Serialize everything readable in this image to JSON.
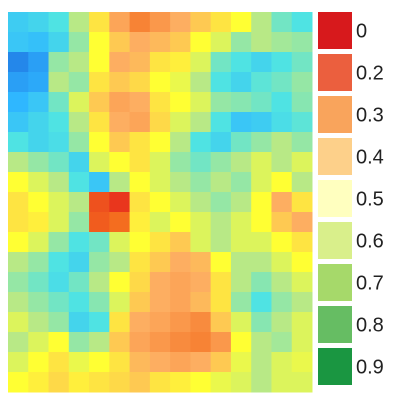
{
  "chart_data": {
    "type": "heatmap",
    "title": "",
    "xlabel": "",
    "ylabel": "",
    "rows": 19,
    "cols": 15,
    "grid": false,
    "colorbar": {
      "placement": "right",
      "scale_note": "",
      "labels": [
        "0",
        "0.2",
        "0.3",
        "0.4",
        "0.5",
        "0.6",
        "0.7",
        "0.8",
        "0.9"
      ],
      "colors": [
        "#d7191c",
        "#eb5f3e",
        "#f9a45c",
        "#fdd08a",
        "#ffffbf",
        "#d9ef8b",
        "#a6d96a",
        "#66bd63",
        "#1a9641"
      ]
    },
    "colormap": [
      {
        "v": 0.0,
        "color": "#e31a1c"
      },
      {
        "v": 0.15,
        "color": "#f46d1f"
      },
      {
        "v": 0.3,
        "color": "#fdae61"
      },
      {
        "v": 0.45,
        "color": "#ffff33"
      },
      {
        "v": 0.55,
        "color": "#b8e986"
      },
      {
        "v": 0.7,
        "color": "#4fe3e3"
      },
      {
        "v": 0.85,
        "color": "#2fb7ff"
      },
      {
        "v": 1.0,
        "color": "#1f6fe0"
      }
    ],
    "values": [
      [
        0.78,
        0.75,
        0.7,
        0.55,
        0.4,
        0.28,
        0.2,
        0.25,
        0.3,
        0.35,
        0.4,
        0.45,
        0.55,
        0.65,
        0.7
      ],
      [
        0.8,
        0.82,
        0.75,
        0.6,
        0.45,
        0.35,
        0.3,
        0.32,
        0.35,
        0.45,
        0.5,
        0.6,
        0.55,
        0.58,
        0.6
      ],
      [
        0.95,
        0.9,
        0.6,
        0.55,
        0.45,
        0.3,
        0.32,
        0.4,
        0.42,
        0.5,
        0.65,
        0.7,
        0.75,
        0.7,
        0.65
      ],
      [
        0.9,
        0.88,
        0.55,
        0.6,
        0.4,
        0.35,
        0.38,
        0.45,
        0.48,
        0.55,
        0.7,
        0.75,
        0.68,
        0.65,
        0.6
      ],
      [
        0.85,
        0.8,
        0.65,
        0.5,
        0.35,
        0.28,
        0.3,
        0.4,
        0.45,
        0.5,
        0.6,
        0.62,
        0.65,
        0.7,
        0.62
      ],
      [
        0.8,
        0.75,
        0.7,
        0.55,
        0.4,
        0.3,
        0.28,
        0.38,
        0.5,
        0.55,
        0.7,
        0.8,
        0.78,
        0.72,
        0.68
      ],
      [
        0.7,
        0.75,
        0.72,
        0.6,
        0.45,
        0.35,
        0.4,
        0.45,
        0.55,
        0.7,
        0.75,
        0.65,
        0.6,
        0.55,
        0.6
      ],
      [
        0.55,
        0.6,
        0.65,
        0.75,
        0.5,
        0.45,
        0.4,
        0.5,
        0.6,
        0.65,
        0.6,
        0.55,
        0.5,
        0.55,
        0.5
      ],
      [
        0.45,
        0.5,
        0.55,
        0.7,
        0.8,
        0.55,
        0.45,
        0.5,
        0.55,
        0.6,
        0.55,
        0.6,
        0.5,
        0.45,
        0.55
      ],
      [
        0.4,
        0.45,
        0.5,
        0.55,
        0.1,
        0.05,
        0.4,
        0.45,
        0.5,
        0.55,
        0.6,
        0.55,
        0.45,
        0.3,
        0.4
      ],
      [
        0.4,
        0.42,
        0.5,
        0.6,
        0.12,
        0.15,
        0.42,
        0.5,
        0.45,
        0.5,
        0.55,
        0.5,
        0.45,
        0.35,
        0.3
      ],
      [
        0.45,
        0.5,
        0.6,
        0.7,
        0.65,
        0.5,
        0.45,
        0.4,
        0.35,
        0.5,
        0.55,
        0.5,
        0.5,
        0.45,
        0.4
      ],
      [
        0.55,
        0.6,
        0.7,
        0.75,
        0.6,
        0.55,
        0.4,
        0.35,
        0.3,
        0.32,
        0.45,
        0.55,
        0.55,
        0.5,
        0.45
      ],
      [
        0.6,
        0.65,
        0.72,
        0.65,
        0.55,
        0.45,
        0.38,
        0.3,
        0.28,
        0.3,
        0.4,
        0.55,
        0.62,
        0.55,
        0.5
      ],
      [
        0.55,
        0.6,
        0.65,
        0.7,
        0.62,
        0.5,
        0.35,
        0.3,
        0.28,
        0.32,
        0.4,
        0.6,
        0.7,
        0.6,
        0.55
      ],
      [
        0.5,
        0.55,
        0.6,
        0.75,
        0.7,
        0.4,
        0.3,
        0.28,
        0.25,
        0.22,
        0.35,
        0.5,
        0.62,
        0.55,
        0.5
      ],
      [
        0.55,
        0.5,
        0.45,
        0.6,
        0.55,
        0.35,
        0.28,
        0.25,
        0.22,
        0.2,
        0.25,
        0.45,
        0.55,
        0.58,
        0.5
      ],
      [
        0.5,
        0.45,
        0.4,
        0.48,
        0.45,
        0.4,
        0.32,
        0.3,
        0.28,
        0.3,
        0.35,
        0.48,
        0.55,
        0.5,
        0.48
      ],
      [
        0.45,
        0.42,
        0.38,
        0.42,
        0.4,
        0.38,
        0.35,
        0.4,
        0.42,
        0.45,
        0.48,
        0.5,
        0.55,
        0.5,
        0.5
      ]
    ]
  }
}
